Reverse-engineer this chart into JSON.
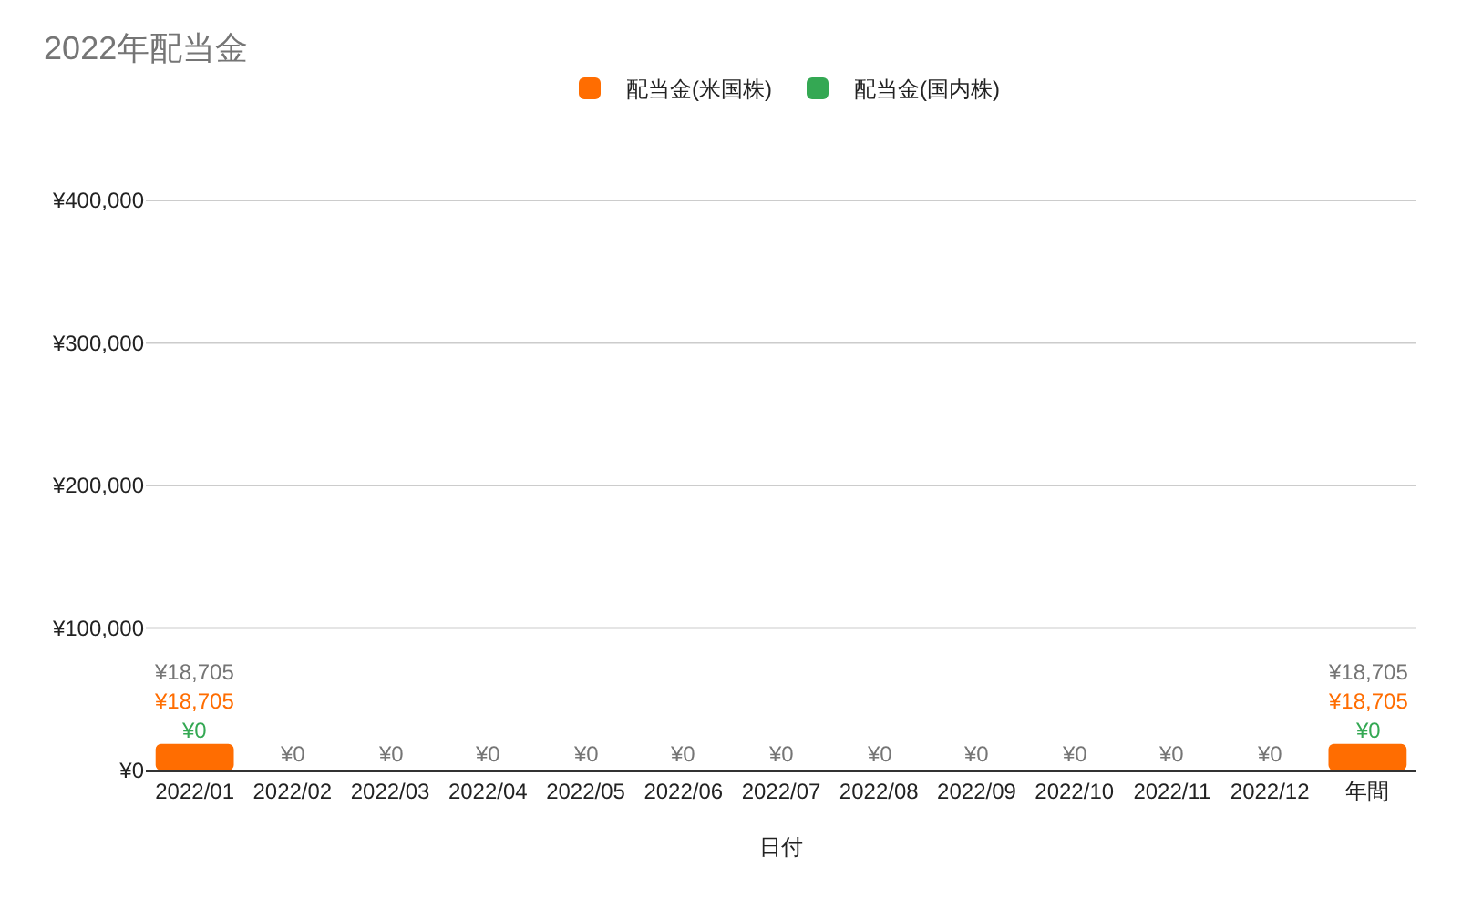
{
  "chart_data": {
    "type": "bar",
    "title": "2022年配当金",
    "xlabel": "日付",
    "stacked": true,
    "categories": [
      "2022/01",
      "2022/02",
      "2022/03",
      "2022/04",
      "2022/05",
      "2022/06",
      "2022/07",
      "2022/08",
      "2022/09",
      "2022/10",
      "2022/11",
      "2022/12",
      "年間"
    ],
    "series": [
      {
        "name": "配当金(米国株)",
        "color": "#ff6d01",
        "values": [
          18705,
          0,
          0,
          0,
          0,
          0,
          0,
          0,
          0,
          0,
          0,
          0,
          18705
        ],
        "value_labels": [
          "¥18,705",
          null,
          null,
          null,
          null,
          null,
          null,
          null,
          null,
          null,
          null,
          null,
          "¥18,705"
        ]
      },
      {
        "name": "配当金(国内株)",
        "color": "#34a853",
        "values": [
          0,
          0,
          0,
          0,
          0,
          0,
          0,
          0,
          0,
          0,
          0,
          0,
          0
        ],
        "value_labels": [
          "¥0",
          null,
          null,
          null,
          null,
          null,
          null,
          null,
          null,
          null,
          null,
          null,
          "¥0"
        ]
      }
    ],
    "totals": [
      "¥18,705",
      "¥0",
      "¥0",
      "¥0",
      "¥0",
      "¥0",
      "¥0",
      "¥0",
      "¥0",
      "¥0",
      "¥0",
      "¥0",
      "¥18,705"
    ],
    "ylim": [
      0,
      400000
    ],
    "yticks": [
      {
        "value": 0,
        "label": "¥0"
      },
      {
        "value": 100000,
        "label": "¥100,000"
      },
      {
        "value": 200000,
        "label": "¥200,000"
      },
      {
        "value": 300000,
        "label": "¥300,000"
      },
      {
        "value": 400000,
        "label": "¥400,000"
      }
    ],
    "grid": "y",
    "legend": "top"
  }
}
